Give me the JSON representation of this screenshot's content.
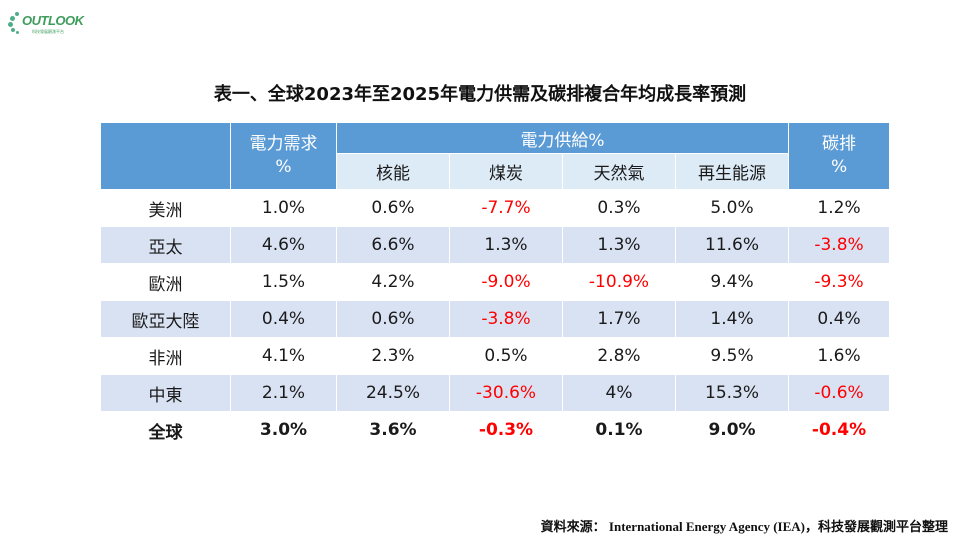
{
  "logo": {
    "wordmark": "OUTLOOK",
    "tagline": "科技發展觀測平台"
  },
  "title": "表一、全球2023年至2025年電力供需及碳排複合年均成長率預測",
  "table": {
    "header": {
      "demand": "電力需求%",
      "supply": "電力供給%",
      "carbon": "碳排%",
      "supply_sub": [
        "核能",
        "煤炭",
        "天然氣",
        "再生能源"
      ]
    },
    "rows": [
      {
        "region": "美洲",
        "values": [
          "1.0%",
          "0.6%",
          "-7.7%",
          "0.3%",
          "5.0%",
          "1.2%"
        ]
      },
      {
        "region": "亞太",
        "values": [
          "4.6%",
          "6.6%",
          "1.3%",
          "1.3%",
          "11.6%",
          "-3.8%"
        ]
      },
      {
        "region": "歐洲",
        "values": [
          "1.5%",
          "4.2%",
          "-9.0%",
          "-10.9%",
          "9.4%",
          "-9.3%"
        ]
      },
      {
        "region": "歐亞大陸",
        "values": [
          "0.4%",
          "0.6%",
          "-3.8%",
          "1.7%",
          "1.4%",
          "0.4%"
        ]
      },
      {
        "region": "非洲",
        "values": [
          "4.1%",
          "2.3%",
          "0.5%",
          "2.8%",
          "9.5%",
          "1.6%"
        ]
      },
      {
        "region": "中東",
        "values": [
          "2.1%",
          "24.5%",
          "-30.6%",
          "4%",
          "15.3%",
          "-0.6%"
        ]
      },
      {
        "region": "全球",
        "values": [
          "3.0%",
          "3.6%",
          "-0.3%",
          "0.1%",
          "9.0%",
          "-0.4%"
        ]
      }
    ]
  },
  "source": "資料來源： International Energy Agency (IEA)，科技發展觀測平台整理",
  "colors": {
    "header_blue": "#5b9bd5",
    "subheader_light": "#ddebf7",
    "band_light": "#d9e2f3",
    "negative_red": "#ff0000",
    "logo_green": "#3e9c5c"
  }
}
